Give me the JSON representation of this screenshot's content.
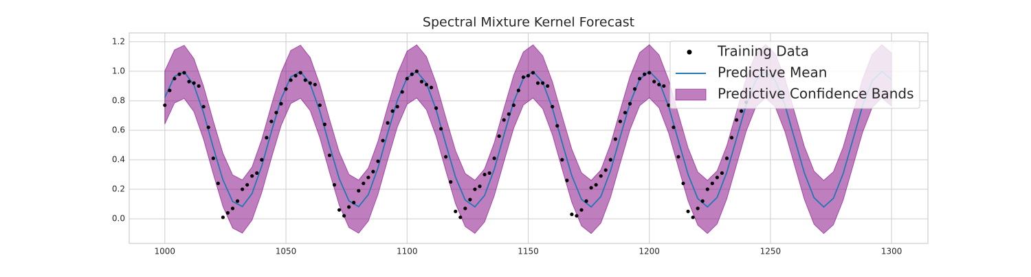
{
  "chart_data": {
    "type": "line",
    "title": "Spectral Mixture Kernel Forecast",
    "xlim": [
      985.3,
      1315
    ],
    "ylim": [
      -0.167,
      1.26
    ],
    "xticks": [
      1000,
      1050,
      1100,
      1150,
      1200,
      1250,
      1300
    ],
    "yticks": [
      {
        "value": 0,
        "label": "0.0"
      },
      {
        "value": 0.2,
        "label": "0.2"
      },
      {
        "value": 0.4,
        "label": "0.4"
      },
      {
        "value": 0.6,
        "label": "0.6"
      },
      {
        "value": 0.8,
        "label": "0.8"
      },
      {
        "value": 1.0,
        "label": "1.0"
      },
      {
        "value": 1.2,
        "label": "1.2"
      }
    ],
    "grid": true,
    "legend": "upper right",
    "series": [
      {
        "name": "Training Data",
        "type": "scatter",
        "color": "#000000",
        "x": [
          1000,
          1002,
          1004,
          1006,
          1008,
          1010,
          1012,
          1014,
          1016,
          1018,
          1020,
          1022,
          1024,
          1026,
          1028,
          1030,
          1032,
          1034,
          1036,
          1038,
          1040,
          1042,
          1044,
          1046,
          1048,
          1050,
          1052,
          1054,
          1056,
          1058,
          1060,
          1062,
          1064,
          1066,
          1068,
          1070,
          1072,
          1074,
          1076,
          1078,
          1080,
          1082,
          1084,
          1086,
          1088,
          1090,
          1092,
          1094,
          1096,
          1098,
          1100,
          1102,
          1104,
          1106,
          1108,
          1110,
          1112,
          1114,
          1116,
          1118,
          1120,
          1122,
          1124,
          1126,
          1128,
          1130,
          1132,
          1134,
          1136,
          1138,
          1140,
          1142,
          1144,
          1146,
          1148,
          1150,
          1152,
          1154,
          1156,
          1158,
          1160,
          1162,
          1164,
          1166,
          1168,
          1170,
          1172,
          1174,
          1176,
          1178,
          1180,
          1182,
          1184,
          1186,
          1188,
          1190,
          1192,
          1194,
          1196,
          1198,
          1200,
          1202,
          1204,
          1206,
          1208,
          1210,
          1212,
          1214,
          1216,
          1218,
          1220,
          1222,
          1224,
          1226,
          1228,
          1230,
          1232,
          1234,
          1236,
          1238,
          1240
        ],
        "values": [
          0.77,
          0.87,
          0.95,
          0.98,
          0.99,
          0.93,
          0.92,
          0.9,
          0.76,
          0.62,
          0.41,
          0.24,
          0.01,
          0.04,
          0.07,
          0.12,
          0.2,
          0.23,
          0.29,
          0.31,
          0.4,
          0.55,
          0.66,
          0.72,
          0.78,
          0.88,
          0.94,
          0.97,
          0.99,
          0.94,
          0.92,
          0.91,
          0.77,
          0.64,
          0.43,
          0.23,
          0.06,
          0.02,
          0.08,
          0.11,
          0.19,
          0.24,
          0.28,
          0.32,
          0.39,
          0.53,
          0.65,
          0.73,
          0.76,
          0.86,
          0.95,
          0.98,
          1.0,
          0.93,
          0.91,
          0.89,
          0.75,
          0.61,
          0.42,
          0.25,
          0.05,
          0.01,
          0.07,
          0.13,
          0.2,
          0.22,
          0.3,
          0.31,
          0.41,
          0.56,
          0.67,
          0.71,
          0.77,
          0.87,
          0.96,
          0.97,
          0.99,
          0.92,
          0.92,
          0.9,
          0.76,
          0.63,
          0.4,
          0.26,
          0.03,
          0.02,
          0.06,
          0.12,
          0.21,
          0.23,
          0.29,
          0.33,
          0.4,
          0.54,
          0.66,
          0.72,
          0.78,
          0.88,
          0.95,
          0.98,
          0.99,
          0.93,
          0.91,
          0.9,
          0.77,
          0.62,
          0.42,
          0.24,
          0.05,
          0.01,
          0.07,
          0.12,
          0.2,
          0.24,
          0.28,
          0.31,
          0.41,
          0.55,
          0.67,
          0.73,
          0.79
        ]
      },
      {
        "name": "Predictive Mean",
        "type": "line",
        "color": "#1f77b4",
        "x": [
          1000,
          1004,
          1008,
          1012,
          1016,
          1020,
          1024,
          1028,
          1032,
          1036,
          1040,
          1044,
          1048,
          1052,
          1056,
          1060,
          1064,
          1068,
          1072,
          1076,
          1080,
          1084,
          1088,
          1092,
          1096,
          1100,
          1104,
          1108,
          1112,
          1116,
          1120,
          1124,
          1128,
          1132,
          1136,
          1140,
          1144,
          1148,
          1152,
          1156,
          1160,
          1164,
          1168,
          1172,
          1176,
          1180,
          1184,
          1188,
          1192,
          1196,
          1200,
          1204,
          1208,
          1212,
          1216,
          1220,
          1224,
          1228,
          1232,
          1236,
          1240,
          1244,
          1248,
          1252,
          1256,
          1260,
          1264,
          1268,
          1272,
          1276,
          1280,
          1284,
          1288,
          1292,
          1296,
          1300
        ],
        "values": [
          0.822,
          0.965,
          0.996,
          0.906,
          0.718,
          0.483,
          0.263,
          0.117,
          0.083,
          0.171,
          0.357,
          0.591,
          0.812,
          0.961,
          0.997,
          0.913,
          0.729,
          0.494,
          0.272,
          0.121,
          0.082,
          0.164,
          0.346,
          0.58,
          0.803,
          0.956,
          0.999,
          0.919,
          0.739,
          0.506,
          0.282,
          0.127,
          0.081,
          0.158,
          0.336,
          0.568,
          0.793,
          0.951,
          0.999,
          0.925,
          0.749,
          0.517,
          0.292,
          0.132,
          0.08,
          0.151,
          0.326,
          0.557,
          0.783,
          0.946,
          1.0,
          0.932,
          0.76,
          0.529,
          0.301,
          0.137,
          0.08,
          0.145,
          0.316,
          0.545,
          0.774,
          0.94,
          1.0,
          0.938,
          0.77,
          0.54,
          0.311,
          0.143,
          0.08,
          0.139,
          0.305,
          0.534,
          0.764,
          0.934,
          1.0,
          0.943
        ]
      },
      {
        "name": "Predictive Confidence Bands",
        "type": "band",
        "color": "#800080",
        "x": [
          1000,
          1004,
          1008,
          1012,
          1016,
          1020,
          1024,
          1028,
          1032,
          1036,
          1040,
          1044,
          1048,
          1052,
          1056,
          1060,
          1064,
          1068,
          1072,
          1076,
          1080,
          1084,
          1088,
          1092,
          1096,
          1100,
          1104,
          1108,
          1112,
          1116,
          1120,
          1124,
          1128,
          1132,
          1136,
          1140,
          1144,
          1148,
          1152,
          1156,
          1160,
          1164,
          1168,
          1172,
          1176,
          1180,
          1184,
          1188,
          1192,
          1196,
          1200,
          1204,
          1208,
          1212,
          1216,
          1220,
          1224,
          1228,
          1232,
          1236,
          1240,
          1244,
          1248,
          1252,
          1256,
          1260,
          1264,
          1268,
          1272,
          1276,
          1280,
          1284,
          1288,
          1292,
          1296,
          1300
        ],
        "upper": [
          1.002,
          1.145,
          1.176,
          1.086,
          0.898,
          0.663,
          0.443,
          0.297,
          0.263,
          0.351,
          0.537,
          0.771,
          0.992,
          1.141,
          1.177,
          1.093,
          0.909,
          0.674,
          0.452,
          0.301,
          0.262,
          0.344,
          0.526,
          0.76,
          0.983,
          1.136,
          1.179,
          1.099,
          0.919,
          0.686,
          0.462,
          0.307,
          0.261,
          0.338,
          0.516,
          0.748,
          0.973,
          1.131,
          1.179,
          1.105,
          0.929,
          0.697,
          0.472,
          0.312,
          0.26,
          0.331,
          0.506,
          0.737,
          0.963,
          1.126,
          1.18,
          1.112,
          0.94,
          0.709,
          0.481,
          0.317,
          0.26,
          0.325,
          0.496,
          0.725,
          0.954,
          1.12,
          1.18,
          1.118,
          0.95,
          0.72,
          0.491,
          0.323,
          0.26,
          0.319,
          0.485,
          0.714,
          0.944,
          1.114,
          1.18,
          1.123
        ],
        "lower": [
          0.642,
          0.785,
          0.816,
          0.726,
          0.538,
          0.303,
          0.083,
          -0.063,
          -0.097,
          -0.009,
          0.177,
          0.411,
          0.632,
          0.781,
          0.817,
          0.733,
          0.549,
          0.314,
          0.092,
          -0.059,
          -0.098,
          -0.016,
          0.166,
          0.4,
          0.623,
          0.776,
          0.819,
          0.739,
          0.559,
          0.326,
          0.102,
          -0.053,
          -0.099,
          -0.022,
          0.156,
          0.388,
          0.613,
          0.771,
          0.819,
          0.745,
          0.569,
          0.337,
          0.112,
          -0.048,
          -0.1,
          -0.029,
          0.146,
          0.377,
          0.603,
          0.766,
          0.82,
          0.752,
          0.58,
          0.349,
          0.121,
          -0.043,
          -0.1,
          -0.035,
          0.136,
          0.365,
          0.594,
          0.76,
          0.82,
          0.758,
          0.59,
          0.36,
          0.131,
          -0.037,
          -0.1,
          -0.041,
          0.125,
          0.354,
          0.584,
          0.754,
          0.82,
          0.763
        ]
      }
    ]
  }
}
